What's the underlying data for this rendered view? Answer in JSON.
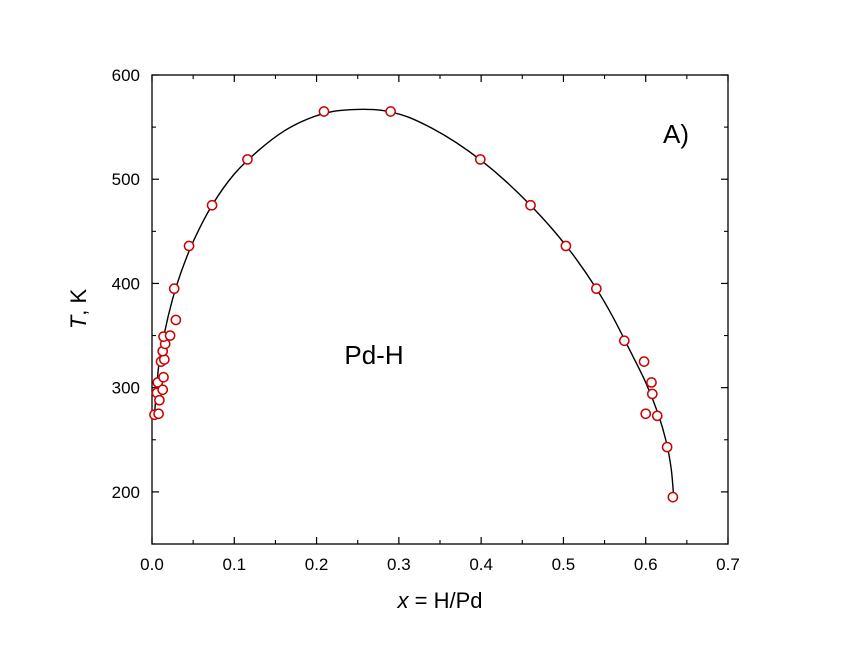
{
  "chart_data": {
    "type": "scatter",
    "xlabel_var": "x",
    "xlabel_rest": " = H/Pd",
    "ylabel_var": "T",
    "ylabel_rest": ",  K",
    "xlim": [
      0.0,
      0.7
    ],
    "ylim": [
      150,
      600
    ],
    "xticks": [
      0.0,
      0.1,
      0.2,
      0.3,
      0.4,
      0.5,
      0.6,
      0.7
    ],
    "xtick_labels": [
      "0.0",
      "0.1",
      "0.2",
      "0.3",
      "0.4",
      "0.5",
      "0.6",
      "0.7"
    ],
    "yticks": [
      200,
      300,
      400,
      500,
      600
    ],
    "ytick_labels": [
      "200",
      "300",
      "400",
      "500",
      "600"
    ],
    "yminor": [
      150,
      250,
      350,
      450,
      550
    ],
    "annotations": [
      "A)",
      "Pd-H"
    ],
    "marker_color": "#cc0000",
    "curve_color": "#000000",
    "points": [
      {
        "x": 0.003,
        "y": 274
      },
      {
        "x": 0.008,
        "y": 275
      },
      {
        "x": 0.006,
        "y": 295
      },
      {
        "x": 0.009,
        "y": 288
      },
      {
        "x": 0.007,
        "y": 305
      },
      {
        "x": 0.013,
        "y": 298
      },
      {
        "x": 0.014,
        "y": 310
      },
      {
        "x": 0.011,
        "y": 325
      },
      {
        "x": 0.015,
        "y": 327
      },
      {
        "x": 0.013,
        "y": 335
      },
      {
        "x": 0.016,
        "y": 342
      },
      {
        "x": 0.014,
        "y": 349
      },
      {
        "x": 0.022,
        "y": 350
      },
      {
        "x": 0.029,
        "y": 365
      },
      {
        "x": 0.027,
        "y": 395
      },
      {
        "x": 0.045,
        "y": 436
      },
      {
        "x": 0.073,
        "y": 475
      },
      {
        "x": 0.116,
        "y": 519
      },
      {
        "x": 0.209,
        "y": 565
      },
      {
        "x": 0.29,
        "y": 565
      },
      {
        "x": 0.399,
        "y": 519
      },
      {
        "x": 0.46,
        "y": 475
      },
      {
        "x": 0.503,
        "y": 436
      },
      {
        "x": 0.54,
        "y": 395
      },
      {
        "x": 0.574,
        "y": 345
      },
      {
        "x": 0.598,
        "y": 325
      },
      {
        "x": 0.607,
        "y": 305
      },
      {
        "x": 0.608,
        "y": 294
      },
      {
        "x": 0.6,
        "y": 275
      },
      {
        "x": 0.614,
        "y": 273
      },
      {
        "x": 0.626,
        "y": 243
      },
      {
        "x": 0.633,
        "y": 195
      }
    ],
    "curve": [
      {
        "x": 0.003,
        "y": 274
      },
      {
        "x": 0.008,
        "y": 320
      },
      {
        "x": 0.015,
        "y": 352
      },
      {
        "x": 0.025,
        "y": 385
      },
      {
        "x": 0.035,
        "y": 410
      },
      {
        "x": 0.05,
        "y": 440
      },
      {
        "x": 0.073,
        "y": 475
      },
      {
        "x": 0.1,
        "y": 505
      },
      {
        "x": 0.13,
        "y": 528
      },
      {
        "x": 0.16,
        "y": 546
      },
      {
        "x": 0.19,
        "y": 558
      },
      {
        "x": 0.22,
        "y": 565
      },
      {
        "x": 0.25,
        "y": 567
      },
      {
        "x": 0.28,
        "y": 566
      },
      {
        "x": 0.31,
        "y": 560
      },
      {
        "x": 0.34,
        "y": 549
      },
      {
        "x": 0.37,
        "y": 535
      },
      {
        "x": 0.4,
        "y": 518
      },
      {
        "x": 0.43,
        "y": 498
      },
      {
        "x": 0.46,
        "y": 475
      },
      {
        "x": 0.49,
        "y": 449
      },
      {
        "x": 0.515,
        "y": 424
      },
      {
        "x": 0.54,
        "y": 395
      },
      {
        "x": 0.56,
        "y": 368
      },
      {
        "x": 0.58,
        "y": 337
      },
      {
        "x": 0.6,
        "y": 305
      },
      {
        "x": 0.615,
        "y": 275
      },
      {
        "x": 0.625,
        "y": 248
      },
      {
        "x": 0.631,
        "y": 222
      },
      {
        "x": 0.634,
        "y": 195
      }
    ]
  }
}
